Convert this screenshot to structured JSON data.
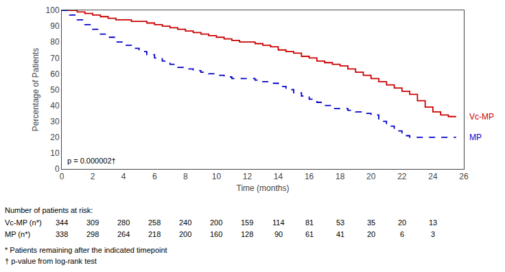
{
  "chart_data": {
    "type": "step",
    "xlabel": "Time (months)",
    "ylabel": "Percentage of Patients",
    "xlim": [
      0,
      26
    ],
    "ylim": [
      0,
      100
    ],
    "xticks": [
      0,
      2,
      4,
      6,
      8,
      10,
      12,
      14,
      16,
      18,
      20,
      22,
      24,
      26
    ],
    "yticks": [
      0,
      10,
      20,
      30,
      40,
      50,
      60,
      70,
      80,
      90,
      100
    ],
    "grid": false,
    "series": [
      {
        "name": "Vc-MP",
        "color": "#cc0000",
        "line_style": "solid",
        "x": [
          0,
          1,
          1.5,
          2,
          2.5,
          3,
          3.5,
          4,
          4.5,
          5,
          5.5,
          6,
          6.5,
          7,
          7.5,
          8,
          8.5,
          9,
          9.5,
          10,
          10.5,
          11,
          11.5,
          12,
          12.5,
          13,
          13.5,
          14,
          14.5,
          15,
          15.5,
          16,
          16.5,
          17,
          17.5,
          18,
          18.5,
          19,
          19.5,
          20,
          20.5,
          21,
          21.5,
          22,
          22.5,
          23,
          23.5,
          24,
          24.5,
          25,
          25.5
        ],
        "values": [
          100,
          99,
          98,
          97,
          96,
          95,
          94,
          94,
          93,
          93,
          92,
          91,
          90,
          89,
          88,
          87,
          86,
          85,
          84,
          83,
          82,
          81,
          80,
          80,
          79,
          78,
          77,
          75,
          74,
          73,
          71,
          70,
          68,
          67,
          66,
          65,
          63,
          61,
          59,
          57,
          55,
          53,
          51,
          49,
          47,
          43,
          39,
          36,
          34,
          33,
          33
        ]
      },
      {
        "name": "MP",
        "color": "#0000cc",
        "line_style": "dashed",
        "x": [
          0,
          0.5,
          1,
          1.5,
          2,
          2.5,
          3,
          3.5,
          4,
          4.5,
          5,
          5.5,
          6,
          6.5,
          7,
          7.5,
          8,
          8.5,
          9,
          9.5,
          10,
          10.5,
          11,
          11.5,
          12,
          12.5,
          13,
          13.5,
          14,
          14.5,
          15,
          15.5,
          16,
          16.5,
          17,
          17.5,
          18,
          18.5,
          19,
          19.5,
          20,
          20.5,
          21,
          21.5,
          22,
          22.5,
          23,
          25.5
        ],
        "values": [
          100,
          97,
          94,
          91,
          88,
          85,
          83,
          80,
          78,
          76,
          74,
          72,
          70,
          68,
          66,
          64,
          63,
          62,
          61,
          60,
          59,
          58,
          57,
          57,
          57,
          56,
          55,
          54,
          52,
          50,
          48,
          46,
          44,
          42,
          40,
          38,
          38,
          37,
          36,
          35,
          34,
          30,
          27,
          24,
          21,
          20,
          20,
          20
        ]
      }
    ],
    "annotations": [
      "p = 0.000002†"
    ],
    "risk_table": {
      "header": "Number of patients at risk:",
      "times": [
        0,
        2,
        4,
        6,
        8,
        10,
        12,
        14,
        16,
        18,
        20,
        22,
        24
      ],
      "rows": [
        {
          "label": "Vc-MP (n*)",
          "values": [
            344,
            309,
            280,
            258,
            240,
            200,
            159,
            114,
            81,
            53,
            35,
            20,
            13
          ]
        },
        {
          "label": "MP (n*)",
          "values": [
            338,
            298,
            264,
            218,
            200,
            160,
            128,
            90,
            61,
            41,
            20,
            6,
            3
          ]
        }
      ]
    },
    "footnotes": [
      "* Patients remaining after the indicated timepoint",
      "† p-value from log-rank test"
    ]
  }
}
